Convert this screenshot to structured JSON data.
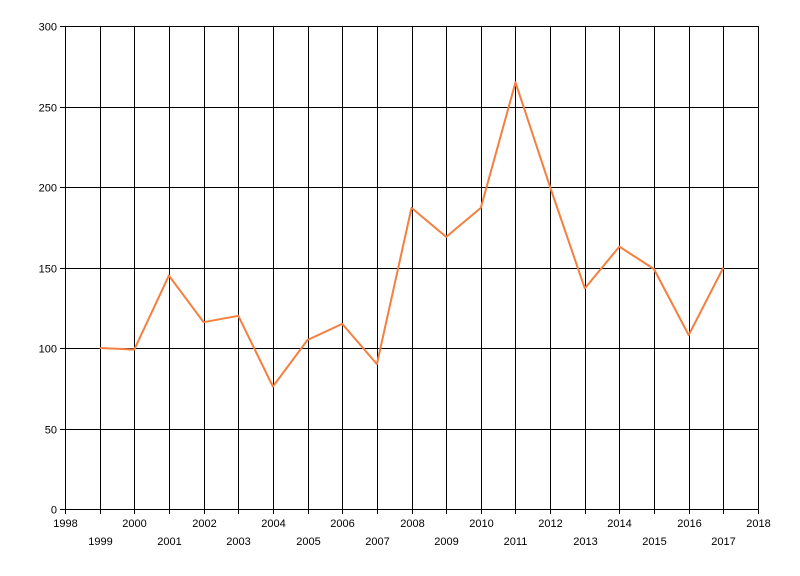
{
  "chart_data": {
    "type": "line",
    "title": "",
    "xlabel": "",
    "ylabel": "",
    "xlim": [
      1998,
      2018
    ],
    "ylim": [
      0,
      300
    ],
    "y_ticks": [
      0,
      50,
      100,
      150,
      200,
      250,
      300
    ],
    "x_ticks": [
      1998,
      1999,
      2000,
      2001,
      2002,
      2003,
      2004,
      2005,
      2006,
      2007,
      2008,
      2009,
      2010,
      2011,
      2012,
      2013,
      2014,
      2015,
      2016,
      2017,
      2018
    ],
    "grid": true,
    "legend": "none",
    "series": [
      {
        "color": "#f47f3e",
        "x": [
          1999,
          2000,
          2001,
          2002,
          2003,
          2004,
          2005,
          2006,
          2007,
          2008,
          2009,
          2010,
          2011,
          2012,
          2013,
          2014,
          2015,
          2016,
          2017
        ],
        "values": [
          100,
          99,
          145,
          116,
          120,
          76,
          105,
          115,
          90,
          187,
          169,
          187,
          265,
          200,
          137,
          163,
          149,
          108,
          150
        ]
      }
    ]
  }
}
